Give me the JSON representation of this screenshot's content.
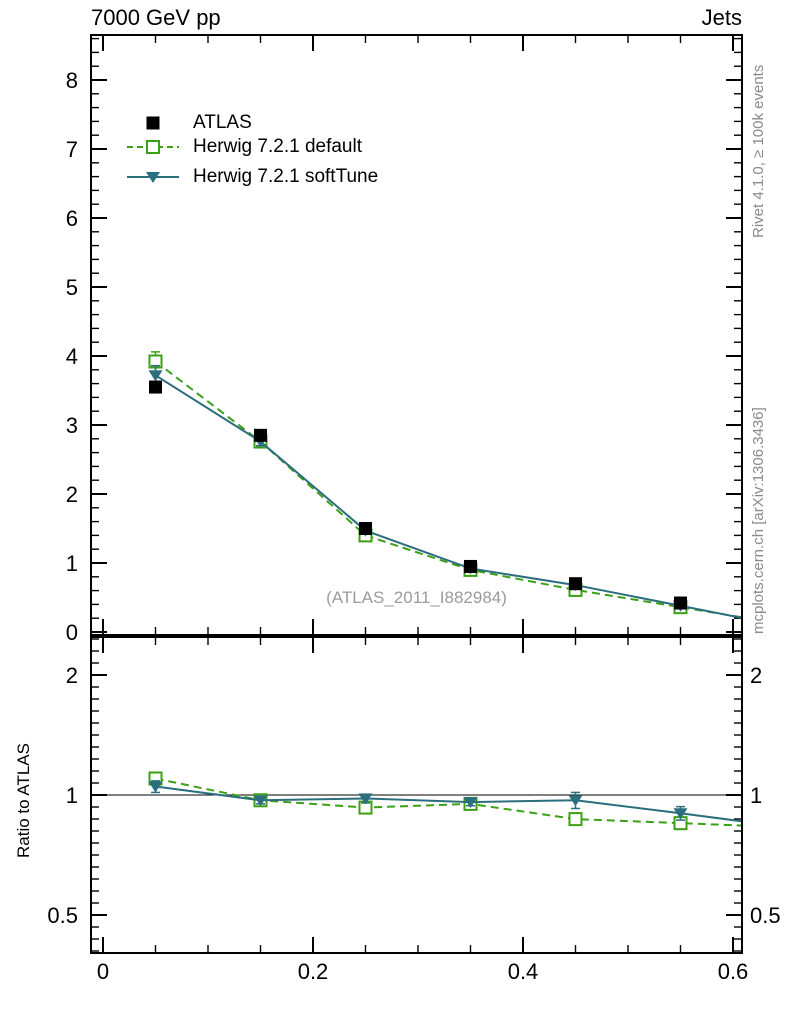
{
  "header": {
    "title_left": "7000 GeV pp",
    "title_right": "Jets"
  },
  "side_notes": {
    "top_right": "Rivet 4.1.0, ≥ 100k events",
    "bottom_right": "mcplots.cern.ch [arXiv:1306.3436]",
    "color": "#8a8a8a"
  },
  "watermark": {
    "text": "(ATLAS_2011_I882984)",
    "color": "#9b9b9b"
  },
  "colors": {
    "atlas": "#000000",
    "herwig_default": "#3ca014",
    "herwig_softtune": "#2b6e7d",
    "frame": "#000000"
  },
  "legend": {
    "items": [
      {
        "label": "ATLAS",
        "marker": "square-filled",
        "line": "none",
        "color": "#000000"
      },
      {
        "label": "Herwig 7.2.1 default",
        "marker": "square-open",
        "line": "dashed",
        "color": "#3ca014"
      },
      {
        "label": "Herwig 7.2.1 softTune",
        "marker": "triangle-down",
        "line": "solid",
        "color": "#2b6e7d"
      }
    ]
  },
  "chart_data": [
    {
      "id": "main",
      "type": "line",
      "title_left": "7000 GeV pp",
      "title_right": "Jets",
      "xlabel": "",
      "ylabel": "",
      "x": [
        0.05,
        0.15,
        0.25,
        0.35,
        0.45,
        0.55
      ],
      "series": [
        {
          "name": "Herwig 7.2.1 default",
          "marker": "square-open",
          "line": "dashed",
          "color": "#3ca014",
          "values": [
            3.92,
            2.76,
            1.4,
            0.9,
            0.61,
            0.36
          ],
          "errors": [
            0.14,
            0.06,
            0.05,
            0.04,
            0.04,
            0.03
          ]
        },
        {
          "name": "Herwig 7.2.1 softTune",
          "marker": "triangle-down",
          "line": "solid",
          "color": "#2b6e7d",
          "values": [
            3.72,
            2.76,
            1.47,
            0.92,
            0.68,
            0.38
          ],
          "errors": [
            0.14,
            0.06,
            0.05,
            0.04,
            0.04,
            0.03
          ]
        },
        {
          "name": "ATLAS",
          "marker": "square-filled",
          "line": "none",
          "color": "#000000",
          "values": [
            3.55,
            2.85,
            1.5,
            0.95,
            0.7,
            0.42
          ],
          "errors": [
            0.08,
            0.05,
            0.04,
            0.03,
            0.03,
            0.02
          ]
        }
      ],
      "xlim": [
        0,
        0.6
      ],
      "ylim": [
        0,
        8.65
      ],
      "yscale": "linear",
      "grid": false,
      "legend_position": "top-left",
      "xticks": {
        "major": [
          0,
          0.2,
          0.4,
          0.6
        ],
        "labels": [
          "0",
          "0.2",
          "0.4",
          "0.6"
        ],
        "minor_step": 0.05,
        "show_labels": false
      },
      "yticks": {
        "major": [
          0,
          1,
          2,
          3,
          4,
          5,
          6,
          7,
          8
        ],
        "labels": [
          "0",
          "1",
          "2",
          "3",
          "4",
          "5",
          "6",
          "7",
          "8"
        ],
        "minor_step": 0.2
      }
    },
    {
      "id": "ratio",
      "type": "line",
      "ylabel": "Ratio to ATLAS",
      "reference_line": 1,
      "x": [
        0.05,
        0.15,
        0.25,
        0.35,
        0.45,
        0.55
      ],
      "series": [
        {
          "name": "Herwig 7.2.1 default",
          "marker": "square-open",
          "line": "dashed",
          "color": "#3ca014",
          "values": [
            1.1,
            0.97,
            0.93,
            0.95,
            0.87,
            0.85
          ],
          "errors": [
            0.035,
            0.02,
            0.025,
            0.02,
            0.03,
            0.03
          ]
        },
        {
          "name": "Herwig 7.2.1 softTune",
          "marker": "triangle-down",
          "line": "solid",
          "color": "#2b6e7d",
          "values": [
            1.05,
            0.97,
            0.98,
            0.96,
            0.97,
            0.9
          ],
          "errors": [
            0.035,
            0.02,
            0.025,
            0.02,
            0.045,
            0.035
          ]
        }
      ],
      "xlim": [
        0,
        0.6
      ],
      "ylim": [
        0.4,
        2.49
      ],
      "yscale": "log",
      "grid": false,
      "xticks": {
        "major": [
          0,
          0.2,
          0.4,
          0.6
        ],
        "labels": [
          "0",
          "0.2",
          "0.4",
          "0.6"
        ],
        "minor_step": 0.05,
        "show_labels": true
      },
      "yticks": {
        "major": [
          0.5,
          1,
          2
        ],
        "labels": [
          "0.5",
          "1",
          "2"
        ],
        "labels_both_sides": true
      }
    }
  ]
}
